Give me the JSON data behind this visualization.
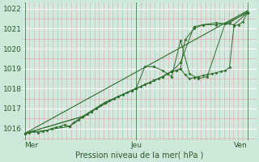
{
  "background_color": "#cce8d8",
  "plot_bg_color": "#d0eae0",
  "line_color": "#2d6e2d",
  "marker_color": "#2d6e2d",
  "title": "Pression niveau de la mer( hPa )",
  "xtick_labels": [
    "Mer",
    "Jeu",
    "Ven"
  ],
  "xtick_positions": [
    0.0,
    0.5,
    1.0
  ],
  "ylim": [
    1015.4,
    1022.3
  ],
  "yticks": [
    1016,
    1017,
    1018,
    1019,
    1020,
    1021,
    1022
  ],
  "vline_positions": [
    0.0,
    0.5,
    1.0
  ],
  "series": [
    {
      "x": [
        0.0,
        0.02,
        0.04,
        0.06,
        0.08,
        0.1,
        0.12,
        0.14,
        0.16,
        0.18,
        0.2,
        0.22,
        0.24,
        0.26,
        0.28,
        0.3,
        0.32,
        0.34,
        0.36,
        0.38,
        0.4,
        0.42,
        0.44,
        0.46,
        0.48,
        0.5,
        0.52,
        0.54,
        0.56,
        0.58,
        0.6,
        0.62,
        0.64,
        0.66,
        0.68,
        0.7,
        0.72,
        0.74,
        0.76,
        0.78,
        0.8,
        0.82,
        0.84,
        0.86,
        0.88,
        0.9,
        0.92,
        0.94,
        0.96,
        0.98,
        1.0
      ],
      "y": [
        1015.75,
        1015.8,
        1015.85,
        1015.8,
        1015.85,
        1015.9,
        1016.0,
        1016.05,
        1016.1,
        1016.2,
        1016.1,
        1016.3,
        1016.45,
        1016.6,
        1016.7,
        1016.85,
        1017.0,
        1017.15,
        1017.3,
        1017.4,
        1017.5,
        1017.6,
        1017.7,
        1017.8,
        1017.9,
        1018.0,
        1018.1,
        1018.2,
        1018.3,
        1018.4,
        1018.5,
        1018.6,
        1018.75,
        1018.85,
        1018.9,
        1019.0,
        1018.7,
        1018.5,
        1018.55,
        1018.6,
        1018.65,
        1018.7,
        1018.75,
        1018.8,
        1018.85,
        1018.9,
        1019.05,
        1021.15,
        1021.2,
        1021.35,
        1021.8
      ],
      "markers": true
    },
    {
      "x": [
        0.0,
        0.26,
        0.36,
        0.48,
        0.5,
        0.56,
        0.62,
        0.66,
        0.7,
        0.76,
        0.8,
        0.86,
        0.9,
        0.94,
        1.0
      ],
      "y": [
        1015.75,
        1016.6,
        1017.3,
        1017.9,
        1018.0,
        1018.3,
        1018.6,
        1018.85,
        1019.3,
        1021.1,
        1021.2,
        1021.3,
        1021.25,
        1021.2,
        1021.8
      ],
      "markers": true
    },
    {
      "x": [
        0.0,
        0.26,
        0.36,
        0.48,
        0.5,
        0.54,
        0.58,
        0.62,
        0.66,
        0.7,
        0.74,
        0.78,
        0.82,
        0.9,
        1.0
      ],
      "y": [
        1015.75,
        1016.6,
        1017.3,
        1017.9,
        1018.0,
        1019.1,
        1019.1,
        1018.9,
        1018.6,
        1020.4,
        1018.75,
        1018.5,
        1018.6,
        1021.25,
        1021.8
      ],
      "markers": true
    },
    {
      "x": [
        0.0,
        0.2,
        0.3,
        0.42,
        0.5,
        0.54,
        0.58,
        0.62,
        0.66,
        0.68,
        0.7,
        0.72,
        0.76,
        0.8,
        0.86,
        0.92,
        1.0
      ],
      "y": [
        1015.75,
        1016.1,
        1016.85,
        1017.6,
        1018.0,
        1018.2,
        1018.4,
        1018.6,
        1018.85,
        1018.9,
        1019.0,
        1020.45,
        1021.0,
        1021.2,
        1021.2,
        1021.3,
        1021.85
      ],
      "markers": true
    },
    {
      "x": [
        0.0,
        1.0
      ],
      "y": [
        1015.75,
        1021.9
      ],
      "markers": false
    }
  ]
}
